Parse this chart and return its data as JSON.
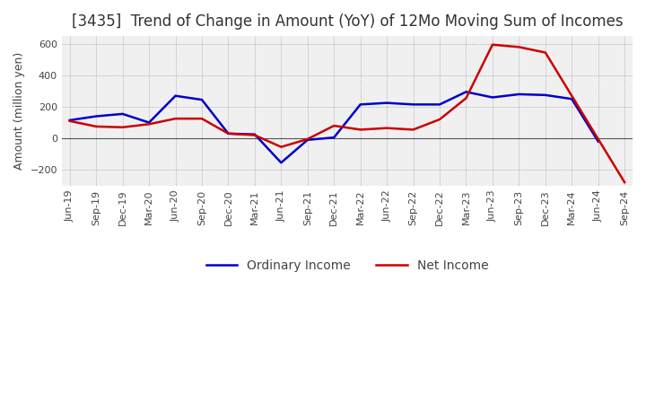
{
  "title": "[3435]  Trend of Change in Amount (YoY) of 12Mo Moving Sum of Incomes",
  "ylabel": "Amount (million yen)",
  "x_labels": [
    "Jun-19",
    "Sep-19",
    "Dec-19",
    "Mar-20",
    "Jun-20",
    "Sep-20",
    "Dec-20",
    "Mar-21",
    "Jun-21",
    "Sep-21",
    "Dec-21",
    "Mar-22",
    "Jun-22",
    "Sep-22",
    "Dec-22",
    "Mar-23",
    "Jun-23",
    "Sep-23",
    "Dec-23",
    "Mar-24",
    "Jun-24",
    "Sep-24"
  ],
  "ordinary_income": [
    115,
    140,
    155,
    100,
    270,
    245,
    30,
    25,
    -155,
    -10,
    5,
    215,
    225,
    215,
    215,
    295,
    260,
    280,
    275,
    250,
    -20,
    null
  ],
  "net_income": [
    110,
    75,
    70,
    90,
    125,
    125,
    30,
    20,
    -55,
    -5,
    80,
    55,
    65,
    55,
    120,
    255,
    595,
    580,
    545,
    null,
    null,
    -280
  ],
  "ordinary_color": "#0000cc",
  "net_color": "#cc0000",
  "ylim": [
    -300,
    650
  ],
  "yticks": [
    -200,
    0,
    200,
    400,
    600
  ],
  "plot_bg_color": "#f0f0f0",
  "fig_bg_color": "#ffffff",
  "grid_color": "#888888",
  "title_fontsize": 12,
  "label_fontsize": 9,
  "tick_fontsize": 8,
  "legend_fontsize": 10
}
